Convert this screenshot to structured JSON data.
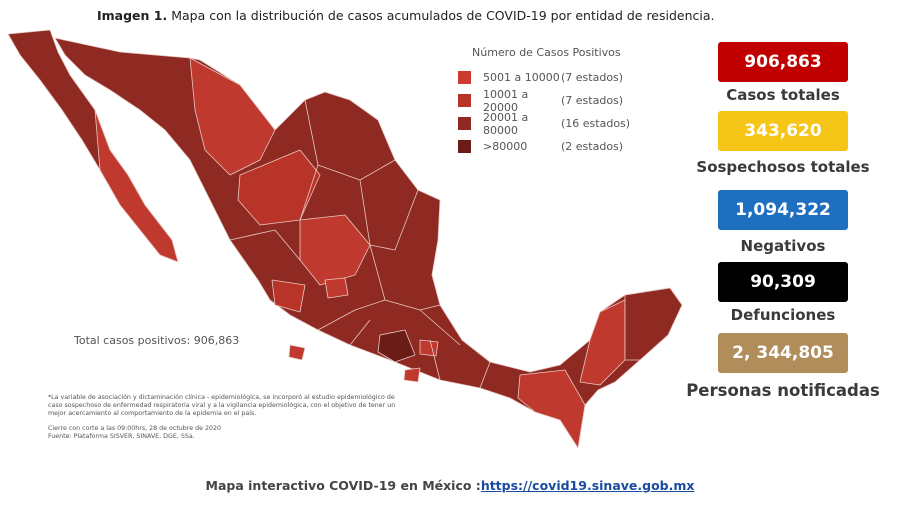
{
  "header": {
    "label": "Imagen 1.",
    "title": "Mapa con la distribución de casos acumulados de COVID-19 por entidad de residencia."
  },
  "legend": {
    "title": "Número de Casos Positivos",
    "items": [
      {
        "range": "5001 a 10000",
        "count": "(7 estados)",
        "color": "#cc3b30"
      },
      {
        "range": "10001 a 20000",
        "count": "(7 estados)",
        "color": "#b83328"
      },
      {
        "range": "20001 a 80000",
        "count": "(16 estados)",
        "color": "#8e2a22"
      },
      {
        "range": ">80000",
        "count": "(2 estados)",
        "color": "#6b1c17"
      }
    ]
  },
  "map": {
    "total": "Total casos positivos: 906,863"
  },
  "notes": [
    "*La variable de asociación y dictaminación clínica - epidemiológica, se incorporó al estudio epidemiológico de caso sospechoso de enfermedad respiratoria viral y a la vigilancia epidemiológica, con el objetivo de tener un mejor acercamiento al comportamiento de la epidemia en el país.",
    "Cierre con corte a las 09:00hrs, 28 de octubre de 2020",
    "Fuente: Plataforma SISVER, SINAVE, DGE, SSa."
  ],
  "stats": [
    {
      "value": "906,863",
      "label": "Casos totales",
      "color": "#c00000"
    },
    {
      "value": "343,620",
      "label": "Sospechosos totales",
      "color": "#f5c518"
    },
    {
      "value": "1,094,322",
      "label": "Negativos",
      "color": "#1f6fc0"
    },
    {
      "value": "90,309",
      "label": "Defunciones",
      "color": "#000000"
    },
    {
      "value": "2, 344,805",
      "label": "Personas notificadas",
      "color": "#b08d5a"
    }
  ],
  "footer": {
    "text": "Mapa interactivo COVID-19 en México :",
    "link": "https://covid19.sinave.gob.mx"
  }
}
